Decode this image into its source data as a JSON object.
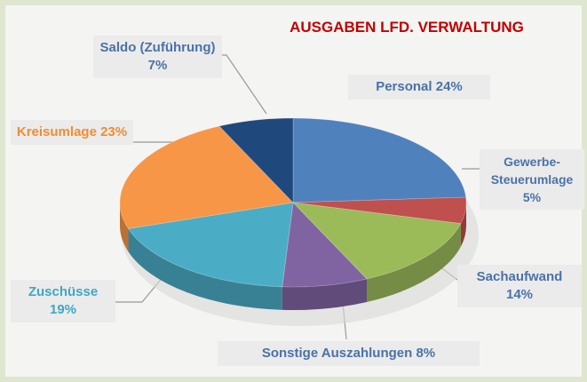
{
  "chart_data": {
    "type": "pie",
    "title": "AUSGABEN LFD. VERWALTUNG",
    "categories": [
      "Personal",
      "Gewerbe-Steuerumlage",
      "Sachaufwand",
      "Sonstige Auszahlungen",
      "Zuschüsse",
      "Kreisumlage",
      "Saldo (Zuführung)"
    ],
    "values": [
      24,
      5,
      14,
      8,
      19,
      23,
      7
    ],
    "value_labels": [
      "24%",
      "5%",
      "14%",
      "8%",
      "19%",
      "23%",
      "7%"
    ],
    "colors": [
      "#4f81bd",
      "#c0504d",
      "#9bbb59",
      "#8064a2",
      "#4bacc6",
      "#f79646",
      "#1f497d"
    ]
  }
}
